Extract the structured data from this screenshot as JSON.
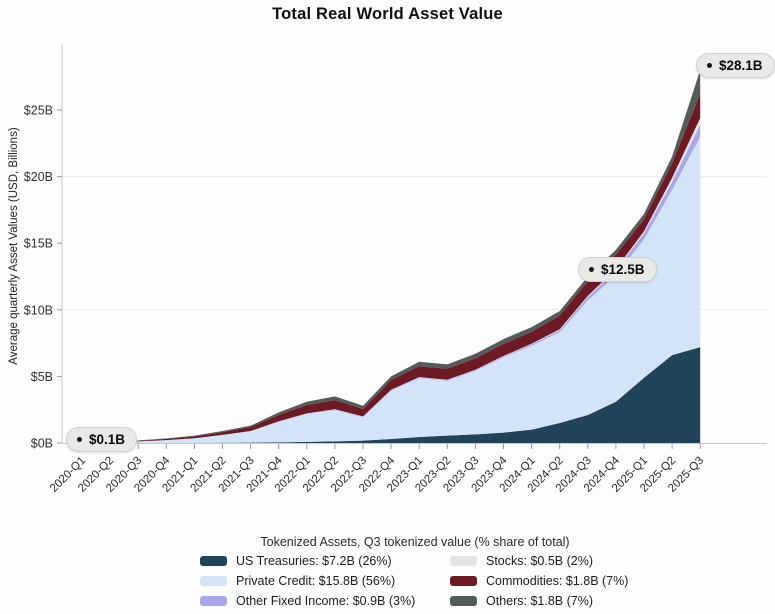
{
  "title": "Total Real World Asset Value",
  "y_axis": {
    "label": "Average quarterly Asset Values (USD, Billions)"
  },
  "annotations": [
    {
      "label": "$0.1B"
    },
    {
      "label": "$12.5B"
    },
    {
      "label": "$28.1B"
    }
  ],
  "legend": {
    "title": "Tokenized Assets, Q3 tokenized value (% share of total)",
    "items": [
      {
        "label": "US Treasuries: $7.2B (26%)",
        "color": "#21445a"
      },
      {
        "label": "Private Credit: $15.8B (56%)",
        "color": "#d3e3f8"
      },
      {
        "label": "Other Fixed Income: $0.9B (3%)",
        "color": "#aaa6ec"
      },
      {
        "label": "Stocks: $0.5B (2%)",
        "color": "#e4e4e4"
      },
      {
        "label": "Commodities: $1.8B (7%)",
        "color": "#6d1a24"
      },
      {
        "label": "Others: $1.8B (7%)",
        "color": "#555b5b"
      }
    ]
  },
  "chart_data": {
    "type": "area",
    "stacked": true,
    "title": "Total Real World Asset Value",
    "xlabel": "",
    "ylabel": "Average quarterly Asset Values (USD, Billions)",
    "ylim": [
      0,
      25
    ],
    "grid_values": [
      10,
      20
    ],
    "legend_position": "bottom",
    "y_ticks": [
      {
        "label": "$0B",
        "value": 0
      },
      {
        "label": "$5B",
        "value": 5
      },
      {
        "label": "$10B",
        "value": 10
      },
      {
        "label": "$15B",
        "value": 15
      },
      {
        "label": "$20B",
        "value": 20
      },
      {
        "label": "$25B",
        "value": 25
      }
    ],
    "categories": [
      "2020-Q1",
      "2020-Q2",
      "2020-Q3",
      "2020-Q4",
      "2021-Q1",
      "2021-Q2",
      "2021-Q3",
      "2021-Q4",
      "2022-Q1",
      "2022-Q2",
      "2022-Q3",
      "2022-Q4",
      "2023-Q1",
      "2023-Q2",
      "2023-Q3",
      "2023-Q4",
      "2024-Q1",
      "2024-Q2",
      "2024-Q3",
      "2024-Q4",
      "2025-Q1",
      "2025-Q2",
      "2025-Q3"
    ],
    "series": [
      {
        "name": "US Treasuries",
        "color": "#21445a",
        "values": [
          0,
          0,
          0,
          0,
          0.01,
          0.02,
          0.03,
          0.05,
          0.08,
          0.12,
          0.18,
          0.3,
          0.45,
          0.55,
          0.65,
          0.78,
          1.0,
          1.5,
          2.1,
          3.1,
          4.9,
          6.6,
          7.2
        ]
      },
      {
        "name": "Private Credit",
        "color": "#d3e3f8",
        "values": [
          0.06,
          0.09,
          0.12,
          0.22,
          0.35,
          0.58,
          0.85,
          1.55,
          2.1,
          2.35,
          1.76,
          3.62,
          4.42,
          4.12,
          4.75,
          5.65,
          6.3,
          6.82,
          8.6,
          9.5,
          10.4,
          12.4,
          15.8
        ]
      },
      {
        "name": "Other Fixed Income",
        "color": "#aaa6ec",
        "values": [
          0,
          0,
          0,
          0,
          0,
          0.01,
          0.01,
          0.02,
          0.03,
          0.04,
          0.04,
          0.05,
          0.05,
          0.05,
          0.06,
          0.07,
          0.1,
          0.15,
          0.25,
          0.35,
          0.45,
          0.6,
          0.9
        ]
      },
      {
        "name": "Stocks",
        "color": "#e4e4e4",
        "values": [
          0,
          0,
          0,
          0,
          0,
          0,
          0.01,
          0.01,
          0.01,
          0.02,
          0.02,
          0.03,
          0.03,
          0.03,
          0.04,
          0.04,
          0.05,
          0.07,
          0.1,
          0.12,
          0.15,
          0.3,
          0.5
        ]
      },
      {
        "name": "Commodities",
        "color": "#6d1a24",
        "values": [
          0.03,
          0.04,
          0.05,
          0.09,
          0.13,
          0.21,
          0.3,
          0.47,
          0.63,
          0.7,
          0.55,
          0.72,
          0.82,
          0.82,
          0.86,
          0.9,
          0.9,
          1.03,
          1.1,
          1.08,
          0.9,
          1.1,
          1.8
        ]
      },
      {
        "name": "Others",
        "color": "#555b5b",
        "values": [
          0.01,
          0.02,
          0.03,
          0.04,
          0.06,
          0.08,
          0.1,
          0.2,
          0.25,
          0.27,
          0.25,
          0.28,
          0.33,
          0.33,
          0.34,
          0.36,
          0.35,
          0.33,
          0.35,
          0.35,
          0.4,
          0.5,
          1.8
        ]
      }
    ],
    "annotated_points": [
      {
        "category": "2020-Q1",
        "total_label": "$0.1B"
      },
      {
        "category": "2024-Q3",
        "total_label": "$12.5B"
      },
      {
        "category": "2025-Q3",
        "total_label": "$28.1B"
      }
    ]
  }
}
